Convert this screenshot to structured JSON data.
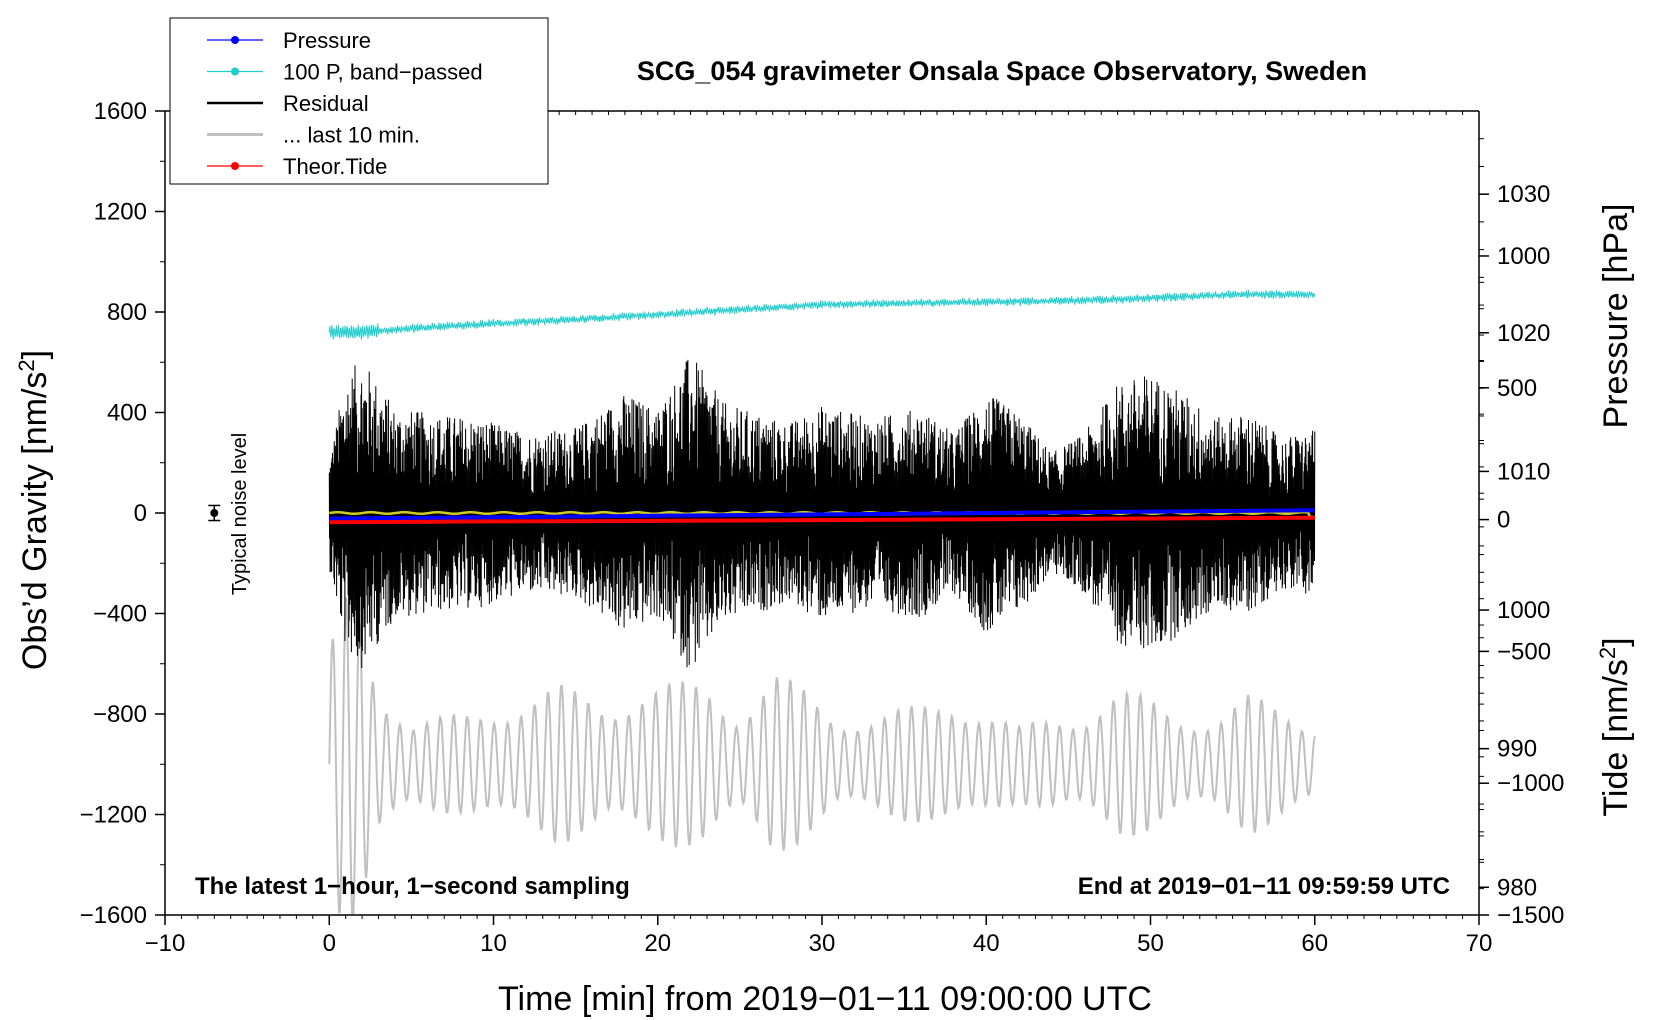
{
  "chart_data": {
    "type": "line",
    "title": "SCG_054 gravimeter Onsala Space Observatory, Sweden",
    "xlabel": "Time [min] from 2019−01−11 09:00:00 UTC",
    "ylabel_left": "Obs’d Gravity [nm/s²]",
    "ylabel_left_main": "Obs’d Gravity [nm/s",
    "ylabel_left_sup": "2",
    "ylabel_left_close": "]",
    "ylabel_pressure": "Pressure [hPa]",
    "ylabel_tide": "Tide [nm/s²]",
    "ylabel_tide_main": "Tide [nm/s",
    "ylabel_tide_sup": "2",
    "ylabel_tide_close": "]",
    "xlim": [
      -10,
      70
    ],
    "ylim": [
      -1600,
      1600
    ],
    "pressure_lim": [
      978,
      1036
    ],
    "tide_lim": [
      -1500,
      1550
    ],
    "x_ticks": [
      -10,
      0,
      10,
      20,
      30,
      40,
      50,
      60,
      70
    ],
    "x_tick_labels": [
      "−10",
      "0",
      "10",
      "20",
      "30",
      "40",
      "50",
      "60",
      "70"
    ],
    "y_ticks": [
      1600,
      1200,
      800,
      400,
      0,
      -400,
      -800,
      -1200,
      -1600
    ],
    "y_tick_labels": [
      "1600",
      "1200",
      "800",
      "400",
      "0",
      "−400",
      "−800",
      "−1200",
      "−1600"
    ],
    "pressure_ticks": [
      1030,
      1020,
      1010,
      1000,
      990,
      980
    ],
    "pressure_tick_labels": [
      "1030",
      "1020",
      "1010",
      "1000",
      "990",
      "980"
    ],
    "tide_ticks": [
      1000,
      500,
      0,
      -500,
      -1000,
      -1500
    ],
    "tide_tick_labels": [
      "1000",
      "500",
      "0",
      "−500",
      "−1000",
      "−1500"
    ],
    "legend": [
      {
        "label": "Pressure",
        "color": "#0000ff",
        "marker": true
      },
      {
        "label": "100 P, band−passed",
        "color": "#22cccc",
        "marker": true
      },
      {
        "label": "Residual",
        "color": "#000000",
        "marker": false
      },
      {
        "label": "... last 10 min.",
        "color": "#c0c0c0",
        "marker": false
      },
      {
        "label": "Theor.Tide",
        "color": "#ff0000",
        "marker": true
      }
    ],
    "annotations": {
      "left": "The latest 1−hour, 1−second sampling",
      "right": "End at 2019−01−11 09:59:59 UTC",
      "noise": "Typical noise level"
    },
    "noise_marker": {
      "x": -7,
      "y": 0,
      "err": 30
    },
    "series": [
      {
        "name": "Pressure",
        "axis": "pressure",
        "color": "#0000ff",
        "x": [
          0,
          10,
          20,
          30,
          40,
          50,
          60
        ],
        "values": [
          1006.6,
          1006.7,
          1006.8,
          1006.9,
          1007.0,
          1007.1,
          1007.2
        ]
      },
      {
        "name": "100 P, band−passed",
        "axis": "left",
        "color": "#22cccc",
        "x": [
          0,
          2,
          5,
          10,
          15,
          20,
          25,
          30,
          35,
          40,
          45,
          50,
          55,
          60
        ],
        "values": [
          720,
          720,
          735,
          755,
          770,
          790,
          810,
          830,
          835,
          840,
          845,
          855,
          870,
          870
        ]
      },
      {
        "name": "Residual",
        "axis": "left",
        "color": "#000000",
        "x": [
          0,
          1,
          2,
          4,
          6,
          9,
          12,
          15,
          18,
          20,
          22,
          24,
          26,
          28,
          30,
          33,
          36,
          38,
          40,
          42,
          44,
          46,
          48,
          50,
          52,
          54,
          56,
          58,
          60
        ],
        "envelope": [
          220,
          550,
          620,
          420,
          400,
          380,
          320,
          340,
          480,
          420,
          640,
          440,
          400,
          360,
          430,
          380,
          420,
          320,
          480,
          400,
          240,
          320,
          520,
          560,
          480,
          380,
          400,
          300,
          330
        ]
      },
      {
        "name": "... last 10 min.",
        "axis": "left",
        "color": "#c0c0c0",
        "x": [
          0,
          1,
          2,
          3,
          5,
          8,
          11,
          14,
          17,
          19,
          21,
          23,
          25,
          27,
          29,
          31,
          33,
          36,
          38,
          40,
          42,
          44,
          46,
          48,
          50,
          52,
          54,
          56,
          58,
          60
        ],
        "envelope": [
          450,
          700,
          650,
          350,
          180,
          200,
          260,
          320,
          260,
          320,
          330,
          340,
          220,
          380,
          300,
          200,
          200,
          240,
          280,
          220,
          150,
          200,
          220,
          300,
          270,
          210,
          190,
          280,
          240,
          180
        ]
      },
      {
        "name": "Theor.Tide",
        "axis": "tide",
        "color": "#ff0000",
        "x": [
          0,
          10,
          20,
          30,
          40,
          50,
          60
        ],
        "values": [
          -10,
          -7,
          -5,
          -2,
          1,
          4,
          7
        ]
      }
    ]
  }
}
